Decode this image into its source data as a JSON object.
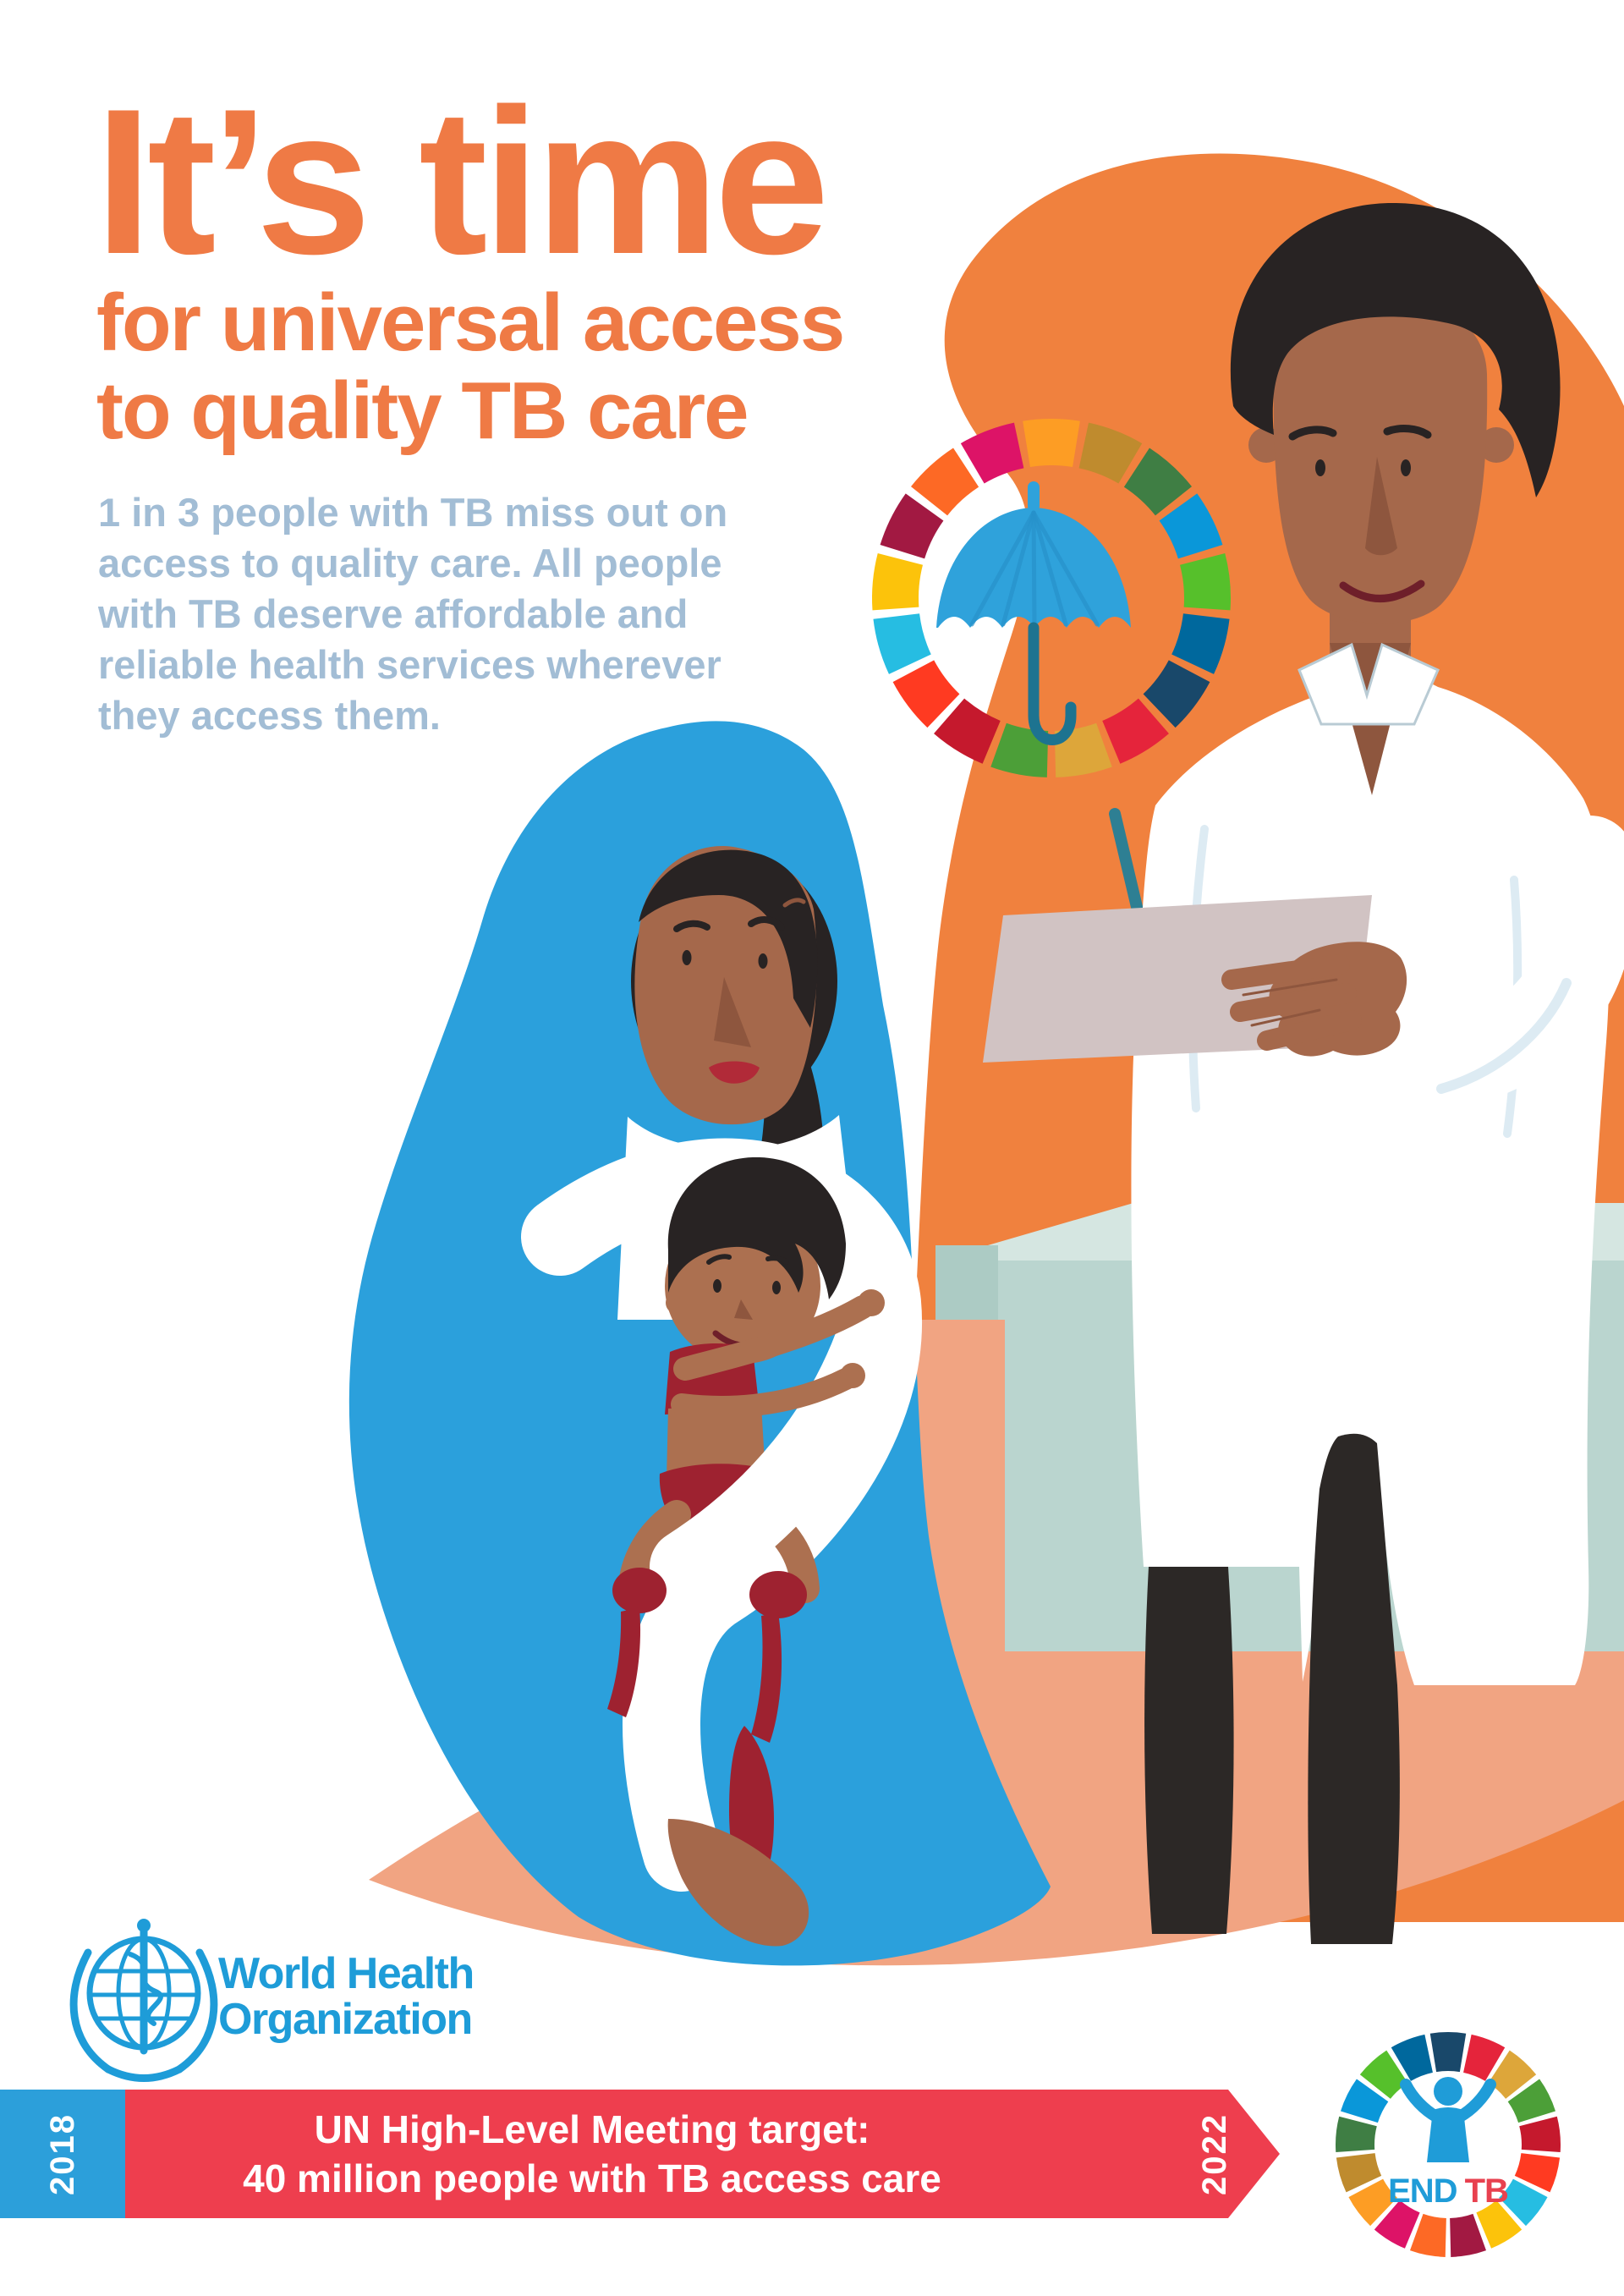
{
  "title": {
    "main": "It’s time",
    "sub_line1": "for universal access",
    "sub_line2": "to quality TB care"
  },
  "intro": {
    "lines": [
      "1 in 3 people with TB miss out on",
      "access to quality care. All people",
      "with TB deserve affordable and",
      "reliable health services wherever",
      "they access them."
    ]
  },
  "who": {
    "line1": "World Health",
    "line2": "Organization"
  },
  "banner": {
    "year_start": "2018",
    "year_end": "2022",
    "line1": "UN High-Level Meeting target:",
    "line2": "40 million people with TB access care"
  },
  "endtb": {
    "end": "END",
    "tb": "TB"
  },
  "colors": {
    "orange": "#EF7A45",
    "blob_orange": "#F0813E",
    "steel_blue": "#A2BDD5",
    "who_blue": "#1E9CD8",
    "hijab_blue": "#2BA0DC",
    "banner_red": "#EE3E4E",
    "banner_blue": "#2C9FDA",
    "floor_peach": "#F1A482",
    "skin": "#A5684B",
    "skin_baby": "#AC7050",
    "skin_shadow": "#8E563E",
    "hair": "#282323",
    "outfit_red": "#9E2230",
    "pen_teal": "#2E7F93",
    "paper": "#D1C3C3",
    "table_green": "#BAD5CF",
    "table_green_top": "#D5E6E1",
    "table_green_side": "#ACCBC4",
    "coat_shade": "#DDEBF3",
    "umbrella_blue": "#2FA2DB",
    "umbrella_panel": "#2691CB",
    "umbrella_handle": "#1D7390",
    "pants": "#2C2826",
    "lips": "#B12A38",
    "mouth": "#6E1F2A",
    "endtb_blue": "#1F9CD8",
    "endtb_red": "#E8414F"
  },
  "sdg_colors": [
    "#E5243B",
    "#DDA63A",
    "#4C9F38",
    "#C5192D",
    "#FF3A21",
    "#26BDE2",
    "#FCC30B",
    "#A21942",
    "#FD6925",
    "#DD1367",
    "#FD9D24",
    "#BF8B2E",
    "#3F7E44",
    "#0A97D9",
    "#56C02B",
    "#00689D",
    "#19486A"
  ]
}
